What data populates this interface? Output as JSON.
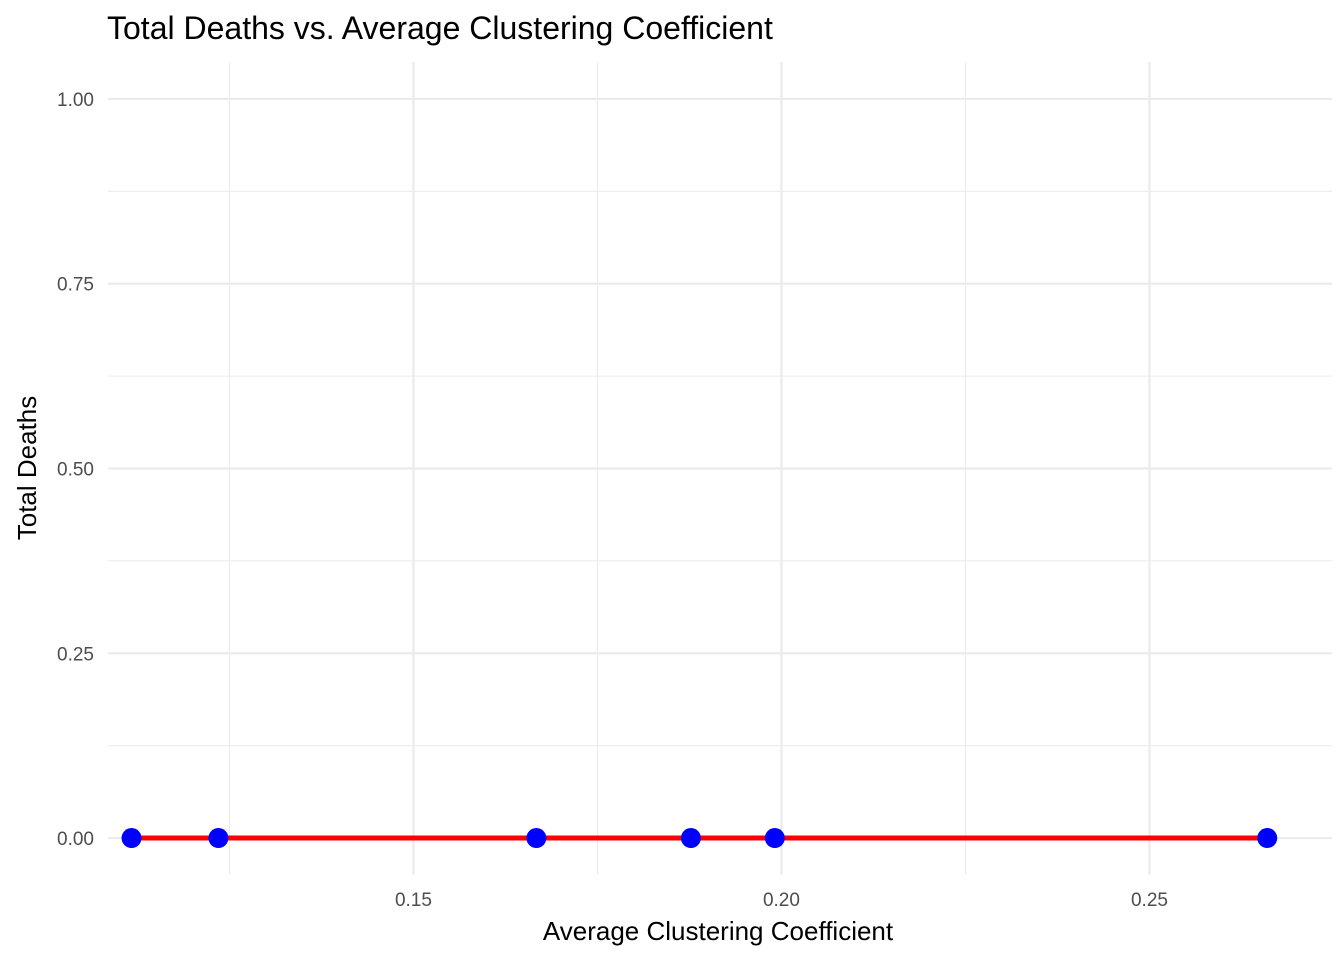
{
  "chart_data": {
    "type": "scatter",
    "title": "Total Deaths vs. Average Clustering Coefficient",
    "xlabel": "Average Clustering Coefficient",
    "ylabel": "Total Deaths",
    "xlim": [
      0.1085,
      0.2748
    ],
    "ylim": [
      -0.05,
      1.05
    ],
    "x_ticks": [
      0.15,
      0.2,
      0.25
    ],
    "x_tick_labels": [
      "0.15",
      "0.20",
      "0.25"
    ],
    "y_ticks": [
      0.0,
      0.25,
      0.5,
      0.75,
      1.0
    ],
    "y_tick_labels": [
      "0.00",
      "0.25",
      "0.50",
      "0.75",
      "1.00"
    ],
    "grid": true,
    "series": [
      {
        "points": [
          {
            "x": 0.1117,
            "y": 0
          },
          {
            "x": 0.1235,
            "y": 0
          },
          {
            "x": 0.1667,
            "y": 0
          },
          {
            "x": 0.1877,
            "y": 0
          },
          {
            "x": 0.1991,
            "y": 0
          },
          {
            "x": 0.266,
            "y": 0
          }
        ],
        "color": "#0000ff"
      }
    ],
    "trend_line": {
      "method": "linear fit",
      "x": [
        0.1117,
        0.266
      ],
      "y": [
        0,
        0
      ],
      "color": "#ff0000"
    }
  }
}
